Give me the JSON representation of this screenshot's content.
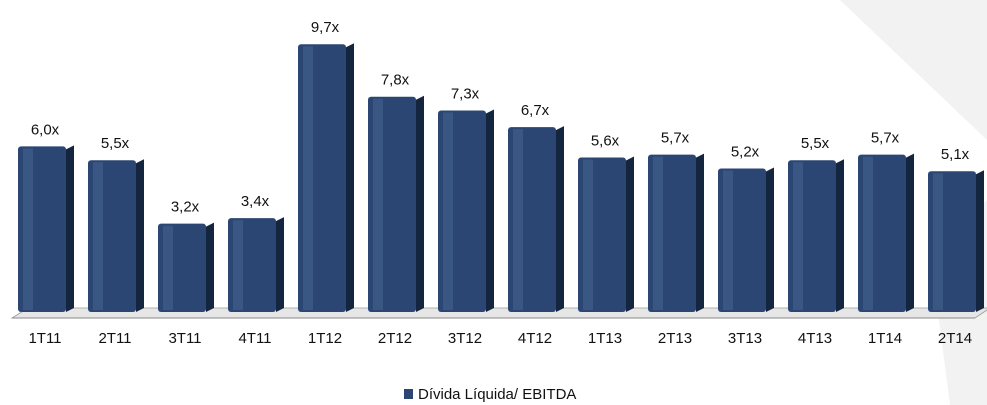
{
  "chart_data": {
    "type": "bar",
    "categories": [
      "1T11",
      "2T11",
      "3T11",
      "4T11",
      "1T12",
      "2T12",
      "3T12",
      "4T12",
      "1T13",
      "2T13",
      "3T13",
      "4T13",
      "1T14",
      "2T14"
    ],
    "series": [
      {
        "name": "Dívida Líquida/ EBITDA",
        "color": "#2b4672",
        "values": [
          6.0,
          5.5,
          3.2,
          3.4,
          9.7,
          7.8,
          7.3,
          6.7,
          5.6,
          5.7,
          5.2,
          5.5,
          5.7,
          5.1
        ],
        "value_labels": [
          "6,0x",
          "5,5x",
          "3,2x",
          "3,4x",
          "9,7x",
          "7,8x",
          "7,3x",
          "6,7x",
          "5,6x",
          "5,7x",
          "5,2x",
          "5,5x",
          "5,7x",
          "5,1x"
        ]
      }
    ],
    "legend": "bottom"
  }
}
